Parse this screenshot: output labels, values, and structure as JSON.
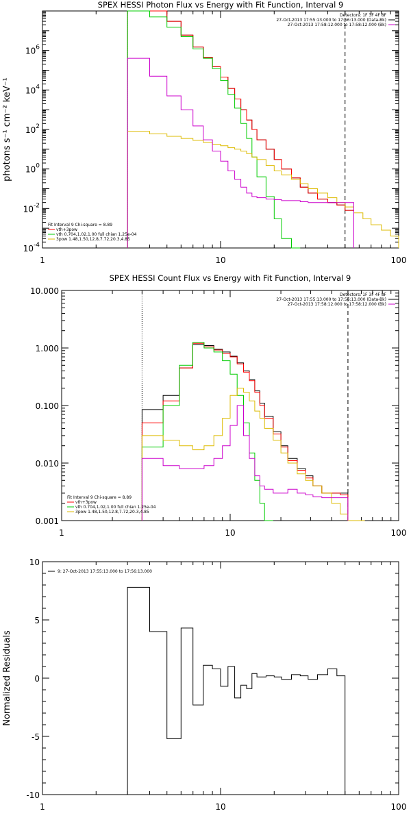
{
  "chart_data": [
    {
      "type": "line",
      "title": "SPEX HESSI Photon Flux vs Energy with Fit Function, Interval 9",
      "xlabel": "",
      "ylabel": "photons s⁻¹ cm⁻² keV⁻¹",
      "x_scale": "log",
      "y_scale": "log",
      "xlim": [
        1,
        100
      ],
      "ylim": [
        0.0001,
        100000000
      ],
      "x_ticks": [
        {
          "v": 1,
          "t": "1"
        },
        {
          "v": 10,
          "t": "10"
        },
        {
          "v": 100,
          "t": "100"
        }
      ],
      "y_ticks": [
        {
          "v": 0.0001,
          "b": "10",
          "e": "-4"
        },
        {
          "v": 0.01,
          "b": "10",
          "e": "-2"
        },
        {
          "v": 1,
          "b": "10",
          "e": "0"
        },
        {
          "v": 100,
          "b": "10",
          "e": "2"
        },
        {
          "v": 10000,
          "b": "10",
          "e": "4"
        },
        {
          "v": 1000000,
          "b": "10",
          "e": "6"
        }
      ],
      "grid": false,
      "top_right_text": [
        {
          "text": "Detectors: 1F 3F 4F 8F",
          "color": ""
        },
        {
          "text": "27-Oct-2013 17:55:13.000 to 17:56:13.000 (Data-Bk)",
          "color": "#000000"
        },
        {
          "text": "27-Oct-2013 17:58:12.000 to 17:58:12.000 (Bk)",
          "color": "#cc00cc"
        }
      ],
      "legend_title": "Fit Interval 9   Chi-square = 8.89",
      "legend_placement": "bottom-left",
      "legend": [
        {
          "text": "vth+3pow",
          "color": "#ff0000"
        },
        {
          "text": "vth 0.704,1.02,1.00  full chian 1.25e-04",
          "color": "#00cc00"
        },
        {
          "text": "3pow 1.48,1.50,12.8,7.72,20.3,4.85",
          "color": "#ddbb00"
        }
      ],
      "vlines": [
        {
          "x": 3.0,
          "style": "dotted",
          "color": "#000000"
        },
        {
          "x": 50.0,
          "style": "dashed",
          "color": "#000000"
        }
      ],
      "bin_edges": [
        3,
        4,
        5,
        6,
        7,
        8,
        9,
        10,
        11,
        12,
        13,
        14,
        15,
        16,
        18,
        20,
        22,
        25,
        28,
        31,
        35,
        40,
        45,
        50,
        56,
        63,
        70,
        80,
        90,
        100
      ],
      "series": [
        {
          "name": "",
          "color": "#000000",
          "values": [
            200000000,
            100000000,
            30000000,
            6000000,
            1500000,
            450000,
            150000,
            45000,
            12000,
            3500,
            1000,
            300,
            100,
            30,
            10,
            3,
            1.0,
            0.35,
            0.12,
            0.06,
            0.03,
            0.02,
            0.015,
            0.008,
            null,
            null,
            null,
            null,
            null
          ]
        },
        {
          "name": "vth+3pow",
          "color": "#ff0000",
          "values": [
            200000000,
            100000000,
            30000000,
            6000000,
            1500000,
            450000,
            150000,
            45000,
            12000,
            3500,
            1000,
            300,
            100,
            30,
            10,
            3,
            1.0,
            0.35,
            0.12,
            0.06,
            0.03,
            0.02,
            0.015,
            0.008,
            null,
            null,
            null,
            null,
            null
          ]
        },
        {
          "name": "vth",
          "color": "#00cc00",
          "values": [
            100000000,
            50000000,
            15000000,
            5000000,
            1200000,
            400000,
            120000,
            30000,
            6000,
            1200,
            200,
            35,
            4,
            0.4,
            0.04,
            0.003,
            0.0003,
            2e-05,
            null,
            null,
            null,
            null,
            null,
            null,
            null,
            null,
            null,
            null,
            null
          ]
        },
        {
          "name": "3pow",
          "color": "#ddbb00",
          "values": [
            80,
            60,
            45,
            35,
            28,
            22,
            18,
            15,
            12,
            10,
            8,
            6,
            4,
            3,
            1.5,
            0.8,
            0.5,
            0.3,
            0.18,
            0.1,
            0.06,
            0.035,
            0.02,
            0.012,
            0.006,
            0.003,
            0.0015,
            0.0008,
            0.0004
          ]
        },
        {
          "name": "Bk",
          "color": "#cc00cc",
          "values": [
            400000,
            50000,
            5000,
            1000,
            150,
            30,
            8,
            2.5,
            0.8,
            0.3,
            0.12,
            0.06,
            0.04,
            0.035,
            0.03,
            0.028,
            0.025,
            0.025,
            0.022,
            0.02,
            0.02,
            0.02,
            0.02,
            0.02,
            null,
            null,
            null,
            null,
            null
          ]
        }
      ]
    },
    {
      "type": "line",
      "title": "SPEX HESSI Count Flux vs Energy with Fit Function, Interval 9",
      "xlabel": "",
      "ylabel": "",
      "x_scale": "log",
      "y_scale": "log",
      "xlim": [
        1,
        100
      ],
      "ylim": [
        0.001,
        10
      ],
      "x_ticks": [
        {
          "v": 1,
          "t": "1"
        },
        {
          "v": 10,
          "t": "10"
        },
        {
          "v": 100,
          "t": "100"
        }
      ],
      "y_ticks": [
        {
          "v": 0.001,
          "t": "0.001"
        },
        {
          "v": 0.01,
          "t": "0.010"
        },
        {
          "v": 0.1,
          "t": "0.100"
        },
        {
          "v": 1,
          "t": "1.000"
        },
        {
          "v": 10,
          "t": "10.000"
        }
      ],
      "grid": false,
      "top_right_text": [
        {
          "text": "Detectors: 1F 3F 4F 8F",
          "color": ""
        },
        {
          "text": "27-Oct-2013 17:55:13.000 to 17:56:13.000 (Data-Bk)",
          "color": "#000000"
        },
        {
          "text": "27-Oct-2013 17:58:12.000 to 17:58:12.000 (Bk)",
          "color": "#cc00cc"
        }
      ],
      "legend_title": "Fit Interval 9   Chi-square = 8.89",
      "legend_placement": "bottom-left",
      "legend": [
        {
          "text": "vth+3pow",
          "color": "#ff0000"
        },
        {
          "text": "vth 0.704,1.02,1.00  full chian 1.25e-04",
          "color": "#00cc00"
        },
        {
          "text": "3pow 1.48,1.50,12.8,7.72,20.3,4.85",
          "color": "#ddbb00"
        }
      ],
      "vlines": [
        {
          "x": 3.0,
          "style": "dotted",
          "color": "#000000"
        },
        {
          "x": 50.0,
          "style": "dashed",
          "color": "#000000"
        }
      ],
      "bin_edges": [
        3,
        4,
        5,
        6,
        7,
        8,
        9,
        10,
        11,
        12,
        13,
        14,
        15,
        16,
        18,
        20,
        22,
        25,
        28,
        31,
        35,
        40,
        45,
        50,
        56,
        63,
        70,
        80,
        90,
        100
      ],
      "series": [
        {
          "name": "",
          "color": "#000000",
          "values": [
            0.085,
            0.15,
            0.45,
            1.15,
            1.1,
            0.95,
            0.85,
            0.72,
            0.55,
            0.4,
            0.28,
            0.18,
            0.11,
            0.065,
            0.035,
            0.02,
            0.012,
            0.008,
            0.006,
            0.004,
            0.003,
            0.003,
            0.003,
            null,
            null,
            null,
            null,
            null,
            null
          ]
        },
        {
          "name": "vth+3pow",
          "color": "#ff0000",
          "values": [
            0.05,
            0.12,
            0.45,
            1.2,
            1.05,
            0.92,
            0.8,
            0.7,
            0.53,
            0.38,
            0.27,
            0.17,
            0.1,
            0.06,
            0.032,
            0.019,
            0.011,
            0.0075,
            0.0055,
            0.004,
            0.003,
            0.003,
            0.0028,
            null,
            null,
            null,
            null,
            null,
            null
          ]
        },
        {
          "name": "vth",
          "color": "#00cc00",
          "values": [
            0.019,
            0.1,
            0.5,
            1.25,
            1.0,
            0.85,
            0.6,
            0.35,
            0.15,
            0.05,
            0.015,
            0.005,
            0.002,
            0.0008,
            null,
            null,
            null,
            null,
            null,
            null,
            null,
            null,
            null,
            null,
            null,
            null,
            null,
            null,
            null
          ]
        },
        {
          "name": "3pow",
          "color": "#ddbb00",
          "values": [
            0.03,
            0.025,
            0.02,
            0.017,
            0.02,
            0.03,
            0.06,
            0.15,
            0.2,
            0.17,
            0.12,
            0.08,
            0.06,
            0.04,
            0.025,
            0.015,
            0.01,
            0.0065,
            0.005,
            0.004,
            0.003,
            0.002,
            0.0013,
            0.001,
            0.001,
            null,
            null,
            null,
            null
          ]
        },
        {
          "name": "Bk",
          "color": "#cc00cc",
          "values": [
            0.012,
            0.009,
            0.008,
            0.008,
            0.009,
            0.012,
            0.02,
            0.045,
            0.1,
            0.03,
            0.012,
            0.006,
            0.004,
            0.0035,
            0.003,
            0.003,
            0.0035,
            0.003,
            0.0028,
            0.0026,
            0.0025,
            0.0025,
            0.0025,
            null,
            null,
            null,
            null,
            null,
            null
          ]
        }
      ]
    },
    {
      "type": "line",
      "title": "",
      "xlabel": "",
      "ylabel": "Normalized Residuals",
      "x_scale": "log",
      "y_scale": "linear",
      "xlim": [
        1,
        100
      ],
      "ylim": [
        -10,
        10
      ],
      "x_ticks": [
        {
          "v": 1,
          "t": "1"
        },
        {
          "v": 10,
          "t": "10"
        },
        {
          "v": 100,
          "t": "100"
        }
      ],
      "y_ticks": [
        {
          "v": -10,
          "t": "-10"
        },
        {
          "v": -5,
          "t": "-5"
        },
        {
          "v": 0,
          "t": "0"
        },
        {
          "v": 5,
          "t": "5"
        },
        {
          "v": 10,
          "t": "10"
        }
      ],
      "grid": false,
      "top_right_text": [],
      "legend_title": "",
      "legend_placement": "top-left",
      "legend": [
        {
          "text": "9: 27-Oct-2013 17:55:13.000 to 17:56:13.000",
          "color": "#000000"
        }
      ],
      "vlines": [],
      "bin_edges": [
        3,
        4,
        5,
        6,
        7,
        8,
        9,
        10,
        11,
        12,
        13,
        14,
        15,
        16,
        18,
        20,
        22,
        25,
        28,
        31,
        35,
        40,
        45,
        50
      ],
      "series": [
        {
          "name": "",
          "color": "#000000",
          "values": [
            7.8,
            4.0,
            -5.2,
            4.3,
            -2.3,
            1.1,
            0.8,
            -0.7,
            1.0,
            -1.7,
            -0.6,
            -0.9,
            0.4,
            0.1,
            0.2,
            0.1,
            -0.1,
            0.3,
            0.2,
            -0.1,
            0.3,
            0.8,
            0.2
          ]
        }
      ]
    }
  ]
}
